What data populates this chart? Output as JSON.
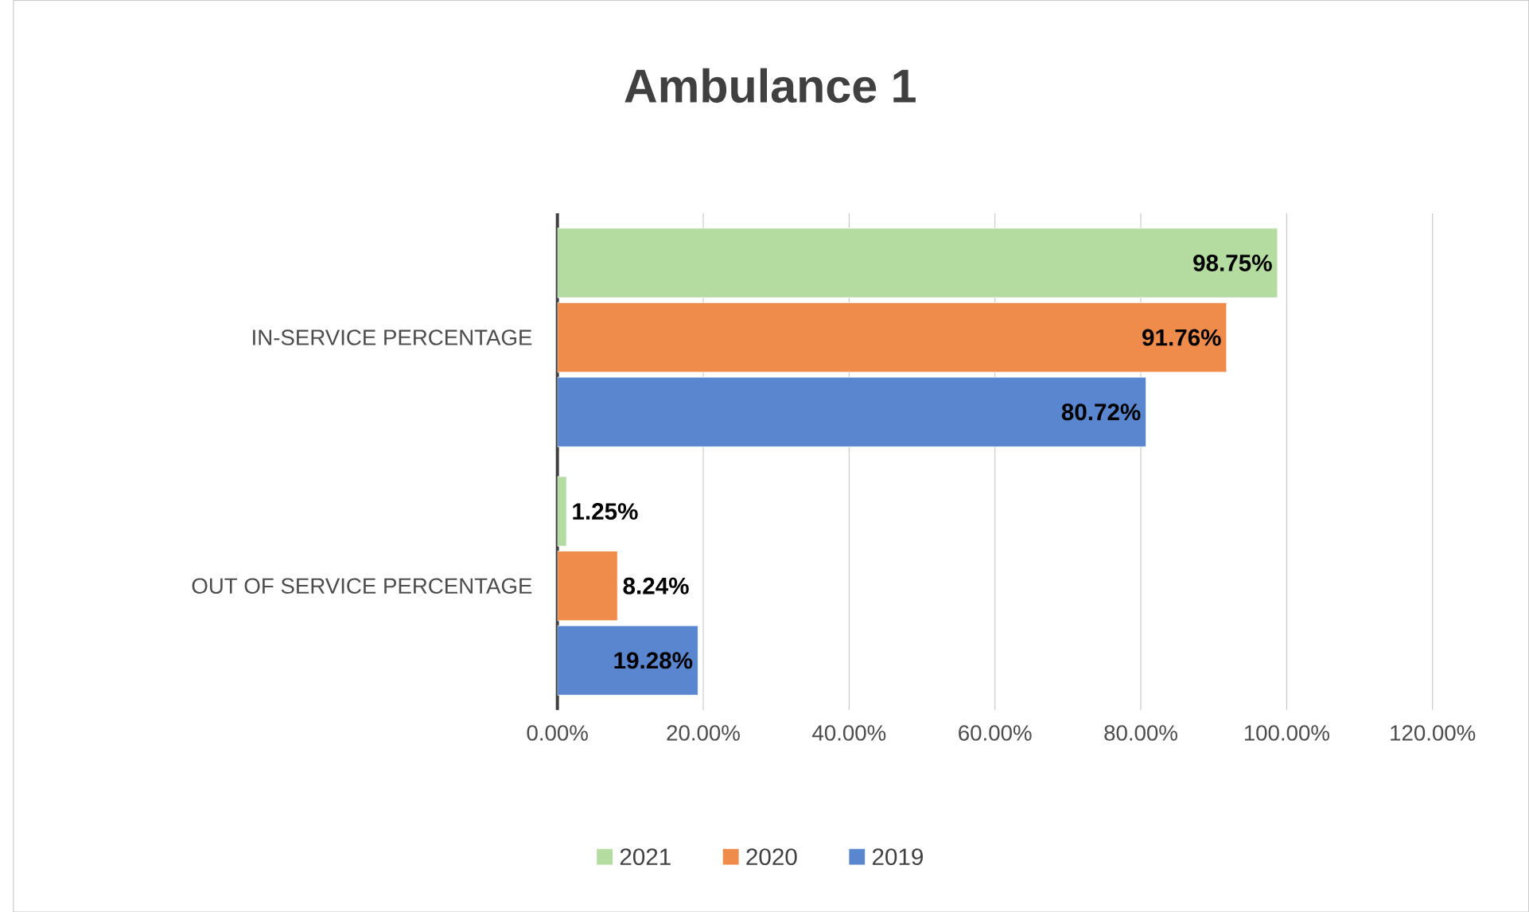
{
  "chart_data": {
    "type": "bar",
    "orientation": "horizontal",
    "title": "Ambulance 1",
    "categories": [
      "IN-SERVICE PERCENTAGE",
      "OUT OF SERVICE PERCENTAGE"
    ],
    "series": [
      {
        "name": "2021",
        "color": "#b5dca0",
        "values": [
          98.75,
          1.25
        ],
        "value_labels": [
          "98.75%",
          "1.25%"
        ]
      },
      {
        "name": "2020",
        "color": "#ef8c4c",
        "values": [
          91.76,
          8.24
        ],
        "value_labels": [
          "91.76%",
          "8.24%"
        ]
      },
      {
        "name": "2019",
        "color": "#5a86d0",
        "values": [
          80.72,
          19.28
        ],
        "value_labels": [
          "80.72%",
          "19.28%"
        ]
      }
    ],
    "xlim": [
      0,
      120
    ],
    "xticks": [
      {
        "value": 0,
        "label": "0.00%"
      },
      {
        "value": 20,
        "label": "20.00%"
      },
      {
        "value": 40,
        "label": "40.00%"
      },
      {
        "value": 60,
        "label": "60.00%"
      },
      {
        "value": 80,
        "label": "80.00%"
      },
      {
        "value": 100,
        "label": "100.00%"
      },
      {
        "value": 120,
        "label": "120.00%"
      }
    ],
    "grid": "x",
    "legend": "bottom"
  }
}
